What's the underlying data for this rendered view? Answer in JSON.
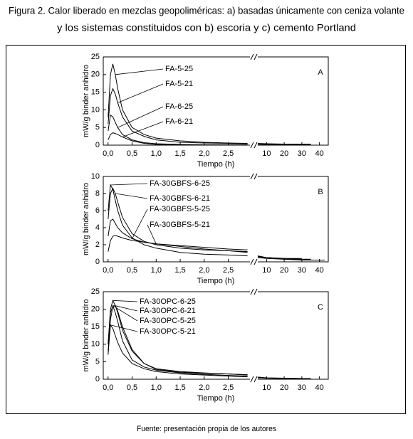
{
  "title": [
    "Figura 2. Calor liberado en mezclas geopoliméricas: a) basadas únicamente con ceniza volante",
    "y los sistemas constituidos con b) escoria y c) cemento Portland"
  ],
  "source": "Fuente: presentación propia de los autores",
  "chart_data": [
    {
      "type": "line",
      "annotation": "A",
      "ylabel": "mW/g binder anhidro",
      "xlabel": "Tiempo (h)",
      "color": "#000000",
      "x": [
        0,
        0.05,
        0.1,
        0.15,
        0.2,
        0.3,
        0.5,
        0.75,
        1.0,
        1.5,
        2.0,
        2.5,
        2.9,
        5,
        10,
        20,
        30,
        35,
        43
      ],
      "xlim": [
        -0.1,
        2.95
      ],
      "xticks": [
        {
          "value": 0,
          "label": "0,0"
        },
        {
          "value": 0.5,
          "label": "0,5"
        },
        {
          "value": 1,
          "label": "1,0"
        },
        {
          "value": 1.5,
          "label": "1,5"
        },
        {
          "value": 2,
          "label": "2,0"
        },
        {
          "value": 2.5,
          "label": "2,5"
        }
      ],
      "x2lim": [
        5,
        45
      ],
      "x2ticks": [
        10,
        20,
        30,
        40
      ],
      "ylim": [
        0,
        25
      ],
      "yticks": [
        0,
        5,
        10,
        15,
        20,
        25
      ],
      "series": [
        {
          "name": "FA-5-25",
          "values": [
            8,
            20,
            23,
            20,
            16,
            10,
            5,
            3,
            2,
            1.2,
            0.8,
            0.6,
            0.5,
            0.5,
            0.4,
            0.3,
            0.3,
            0.3,
            null
          ]
        },
        {
          "name": "FA-5-21",
          "values": [
            6,
            14,
            16,
            14.5,
            12,
            8,
            4,
            2.5,
            1.5,
            0.8,
            0.6,
            0.5,
            0.4,
            0.4,
            0.3,
            0.3,
            0.3,
            0.3,
            null
          ]
        },
        {
          "name": "FA-6-25",
          "values": [
            4,
            8.5,
            8,
            6.5,
            5,
            3,
            1.5,
            0.7,
            0.4,
            0.2,
            0.1,
            0.1,
            0.1,
            0.1,
            0.1,
            0.1,
            0.1,
            0.1,
            null
          ]
        },
        {
          "name": "FA-6-21",
          "values": [
            1.5,
            3,
            3.5,
            3.3,
            3,
            2.3,
            1.2,
            0.5,
            0.2,
            0.1,
            0.1,
            0.1,
            0.1,
            0.1,
            0.1,
            0.1,
            0.1,
            0.1,
            null
          ]
        }
      ]
    },
    {
      "type": "line",
      "annotation": "B",
      "ylabel": "mW/g binder anhidro",
      "xlabel": "Tiempo (h)",
      "color": "#000000",
      "x": [
        0,
        0.05,
        0.1,
        0.15,
        0.2,
        0.3,
        0.5,
        0.75,
        1.0,
        1.5,
        2.0,
        2.5,
        2.9,
        5,
        10,
        20,
        30,
        35,
        43
      ],
      "xlim": [
        -0.1,
        2.95
      ],
      "xticks": [
        {
          "value": 0,
          "label": "0,0"
        },
        {
          "value": 0.5,
          "label": "0,5"
        },
        {
          "value": 1,
          "label": "1,0"
        },
        {
          "value": 1.5,
          "label": "1,5"
        },
        {
          "value": 2,
          "label": "2,0"
        },
        {
          "value": 2.5,
          "label": "2,5"
        }
      ],
      "x2lim": [
        5,
        45
      ],
      "x2ticks": [
        10,
        20,
        30,
        40
      ],
      "ylim": [
        0,
        10
      ],
      "yticks": [
        0,
        2,
        4,
        6,
        8,
        10
      ],
      "series": [
        {
          "name": "FA-30GBFS-6-25",
          "values": [
            6,
            9,
            8.5,
            7.2,
            6,
            4.3,
            2.8,
            2,
            1.6,
            1.1,
            0.9,
            0.8,
            0.7,
            0.5,
            0.4,
            0.3,
            0.2,
            0.2,
            0.2
          ]
        },
        {
          "name": "FA-30GBFS-6-21",
          "values": [
            5,
            8,
            8.6,
            8,
            7,
            5.2,
            3.3,
            2.4,
            2,
            1.6,
            1.4,
            1.3,
            1.2,
            0.6,
            0.5,
            0.3,
            0.3,
            0.3,
            null
          ]
        },
        {
          "name": "FA-30GBFS-5-25",
          "values": [
            3,
            4.8,
            5,
            4.5,
            4,
            3.4,
            2.7,
            2.3,
            2.1,
            1.8,
            1.5,
            1.3,
            1.1,
            0.6,
            0.5,
            0.4,
            0.3,
            0.3,
            null
          ]
        },
        {
          "name": "FA-30GBFS-5-21",
          "values": [
            1.2,
            2.5,
            3,
            3.1,
            3,
            2.8,
            2.5,
            2.3,
            2.1,
            1.9,
            1.7,
            1.5,
            1.4,
            0.7,
            0.5,
            0.4,
            0.4,
            null,
            null
          ]
        }
      ]
    },
    {
      "type": "line",
      "annotation": "C",
      "ylabel": "mW/g binder anhidro",
      "xlabel": "Tiempo (h)",
      "color": "#000000",
      "x": [
        0,
        0.05,
        0.1,
        0.15,
        0.2,
        0.3,
        0.5,
        0.75,
        1.0,
        1.5,
        2.0,
        2.5,
        2.9,
        5,
        10,
        20,
        30,
        35,
        43
      ],
      "xlim": [
        -0.1,
        2.95
      ],
      "xticks": [
        {
          "value": 0,
          "label": "0,0"
        },
        {
          "value": 0.5,
          "label": "0,5"
        },
        {
          "value": 1,
          "label": "1,0"
        },
        {
          "value": 1.5,
          "label": "1,5"
        },
        {
          "value": 2,
          "label": "2,0"
        },
        {
          "value": 2.5,
          "label": "2,5"
        }
      ],
      "x2lim": [
        5,
        45
      ],
      "x2ticks": [
        10,
        20,
        30,
        40
      ],
      "ylim": [
        0,
        25
      ],
      "yticks": [
        0,
        5,
        10,
        15,
        20,
        25
      ],
      "series": [
        {
          "name": "FA-30OPC-6-25",
          "values": [
            10,
            20,
            22.5,
            21,
            19,
            14,
            8,
            4.5,
            3,
            2.2,
            1.8,
            1.5,
            1.3,
            0.6,
            0.3,
            0.3,
            0.2,
            0.2,
            null
          ]
        },
        {
          "name": "FA-30OPC-6-21",
          "values": [
            8,
            17,
            21,
            21,
            19.5,
            15,
            8.5,
            4.5,
            2.8,
            2,
            1.7,
            1.5,
            1.2,
            0.6,
            0.4,
            0.3,
            0.2,
            0.2,
            null
          ]
        },
        {
          "name": "FA-30OPC-5-25",
          "values": [
            10,
            19,
            21,
            19,
            16.5,
            11,
            5.5,
            3.5,
            2.6,
            1.8,
            1.4,
            1.1,
            0.9,
            0.5,
            0.3,
            0.2,
            0.2,
            0.2,
            null
          ]
        },
        {
          "name": "FA-30OPC-5-21",
          "values": [
            7,
            15.5,
            14.5,
            12.5,
            10.5,
            7.5,
            4.5,
            3,
            2.2,
            1.5,
            1.2,
            0.9,
            0.7,
            0.4,
            0.3,
            0.2,
            0.2,
            0.2,
            null
          ]
        }
      ]
    }
  ]
}
